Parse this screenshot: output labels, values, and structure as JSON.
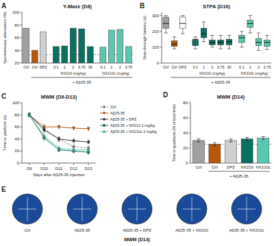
{
  "chart_data": [
    {
      "type": "bar",
      "panel_label": "A",
      "title": "Y-Maze (D8)",
      "ylabel": "Spontaneous alternation (%)",
      "categories": [
        "Ctrl",
        "Ctrl",
        "DPZ",
        "0.1",
        "1",
        "2",
        "3.75",
        "30",
        "0.1",
        "1",
        "2",
        "3.75"
      ],
      "group_labels": [
        null,
        null,
        null,
        "NX210 (mg/kg)",
        "NX210 (mg/kg)",
        "NX210 (mg/kg)",
        "NX210 (mg/kg)",
        "NX210 (mg/kg)",
        "NX210c (mg/kg)",
        "NX210c (mg/kg)",
        "NX210c (mg/kg)",
        "NX210c (mg/kg)"
      ],
      "values": [
        75,
        40,
        69,
        46,
        47,
        75,
        74,
        46,
        45,
        72,
        73,
        46
      ],
      "colors": [
        "#a0a0a0",
        "#b8570a",
        "#d0d0d0",
        "#0a7060",
        "#0a7060",
        "#0a7060",
        "#0a7060",
        "#0a7060",
        "#5ac8b0",
        "#5ac8b0",
        "#5ac8b0",
        "#5ac8b0"
      ],
      "reference_line": 33.33,
      "annotation": "+ Aβ25-35",
      "ylim": [
        20,
        100
      ],
      "yticks": [
        20,
        40,
        60,
        80,
        100
      ]
    },
    {
      "type": "box",
      "panel_label": "B",
      "title": "STPA (D10)",
      "ylabel": "Step-through latency (s)",
      "categories": [
        "Ctrl",
        "Ctrl",
        "DPZ",
        "0.1",
        "1",
        "2",
        "3.75",
        "30",
        "0.1",
        "1",
        "2",
        "3.75"
      ],
      "group_labels": [
        null,
        null,
        null,
        "NX210 (mg/kg)",
        "NX210 (mg/kg)",
        "NX210 (mg/kg)",
        "NX210 (mg/kg)",
        "NX210 (mg/kg)",
        "NX210c (mg/kg)",
        "NX210c (mg/kg)",
        "NX210c (mg/kg)",
        "NX210c (mg/kg)"
      ],
      "medians": [
        250,
        120,
        250,
        150,
        185,
        130,
        130,
        135,
        160,
        250,
        130,
        130
      ],
      "q1": [
        220,
        105,
        220,
        110,
        160,
        115,
        115,
        115,
        130,
        225,
        110,
        105
      ],
      "q3": [
        290,
        140,
        290,
        145,
        220,
        145,
        145,
        150,
        175,
        270,
        155,
        145
      ],
      "whisker_low": [
        190,
        90,
        185,
        90,
        135,
        100,
        90,
        90,
        100,
        190,
        80,
        85
      ],
      "whisker_high": [
        300,
        165,
        300,
        165,
        260,
        175,
        175,
        175,
        200,
        300,
        190,
        175
      ],
      "colors": [
        "#a0a0a0",
        "#b8570a",
        "#ffffff",
        "#0a7060",
        "#0a7060",
        "#0a7060",
        "#0a7060",
        "#0a7060",
        "#5ac8b0",
        "#5ac8b0",
        "#5ac8b0",
        "#5ac8b0"
      ],
      "annotation": "+ Aβ25-35",
      "ylim": [
        0,
        320
      ],
      "yticks": [
        0,
        100,
        200,
        300
      ]
    },
    {
      "type": "line",
      "panel_label": "C",
      "title": "MWM (D9-D13)",
      "ylabel": "Time to platform (s)",
      "xlabel": "Days after Aβ25-35 injection",
      "categories": [
        "D9",
        "D10",
        "D11",
        "D12",
        "D13"
      ],
      "series": [
        {
          "name": "Ctrl",
          "color": "#808080",
          "marker": "circle",
          "line_style": "dashed",
          "values": [
            80,
            57,
            40,
            27,
            25
          ],
          "errors": [
            3,
            4,
            4,
            3,
            3
          ]
        },
        {
          "name": "Aβ25-35",
          "color": "#b8570a",
          "marker": "triangle-down",
          "line_style": "solid",
          "values": [
            80,
            60,
            60,
            58,
            57
          ],
          "errors": [
            3,
            4,
            3,
            3,
            3
          ]
        },
        {
          "name": "Aβ25-35 + DPZ",
          "color": "#303030",
          "marker": "circle",
          "line_style": "solid",
          "values": [
            80,
            55,
            40,
            37,
            35
          ],
          "errors": [
            3,
            4,
            3,
            3,
            3
          ]
        },
        {
          "name": "Aβ25-35 + NX210 2 mg/kg",
          "color": "#0a7060",
          "marker": "square",
          "line_style": "solid",
          "values": [
            80,
            42,
            22,
            20,
            18
          ],
          "errors": [
            3,
            4,
            3,
            3,
            3
          ]
        },
        {
          "name": "Aβ25-35 + NX210c 2 mg/kg",
          "color": "#5ac8b0",
          "marker": "triangle-up",
          "line_style": "solid",
          "values": [
            80,
            45,
            25,
            22,
            22
          ],
          "errors": [
            3,
            3,
            3,
            3,
            3
          ]
        }
      ],
      "legend": "right",
      "ylim": [
        0,
        100
      ],
      "yticks": [
        0,
        20,
        40,
        60,
        80,
        100
      ]
    },
    {
      "type": "bar",
      "panel_label": "D",
      "title": "MWM (D14)",
      "ylabel": "Time in quadrants (% of total time)",
      "categories": [
        "Ctrl",
        "Ctrl",
        "DPZ",
        "NX210",
        "NX210c"
      ],
      "values": [
        30,
        25,
        30,
        32,
        33
      ],
      "errors": [
        2,
        2,
        2,
        2,
        2
      ],
      "colors": [
        "#a0a0a0",
        "#b8570a",
        "#d0d0d0",
        "#0a7060",
        "#5ac8b0"
      ],
      "reference_line": 25,
      "annotation": "+ Aβ25-35",
      "ylim": [
        0,
        80
      ],
      "yticks": [
        0,
        20,
        40,
        60,
        80
      ]
    },
    {
      "type": "icons",
      "panel_label": "E",
      "title": "MWM (D14)",
      "categories": [
        "Ctrl",
        "Aβ25-35",
        "Aβ25-35 + DPZ",
        "Aβ25-35 + NX210",
        "Aβ25-35 + NX210c"
      ],
      "color": "#1a4a9a"
    }
  ]
}
